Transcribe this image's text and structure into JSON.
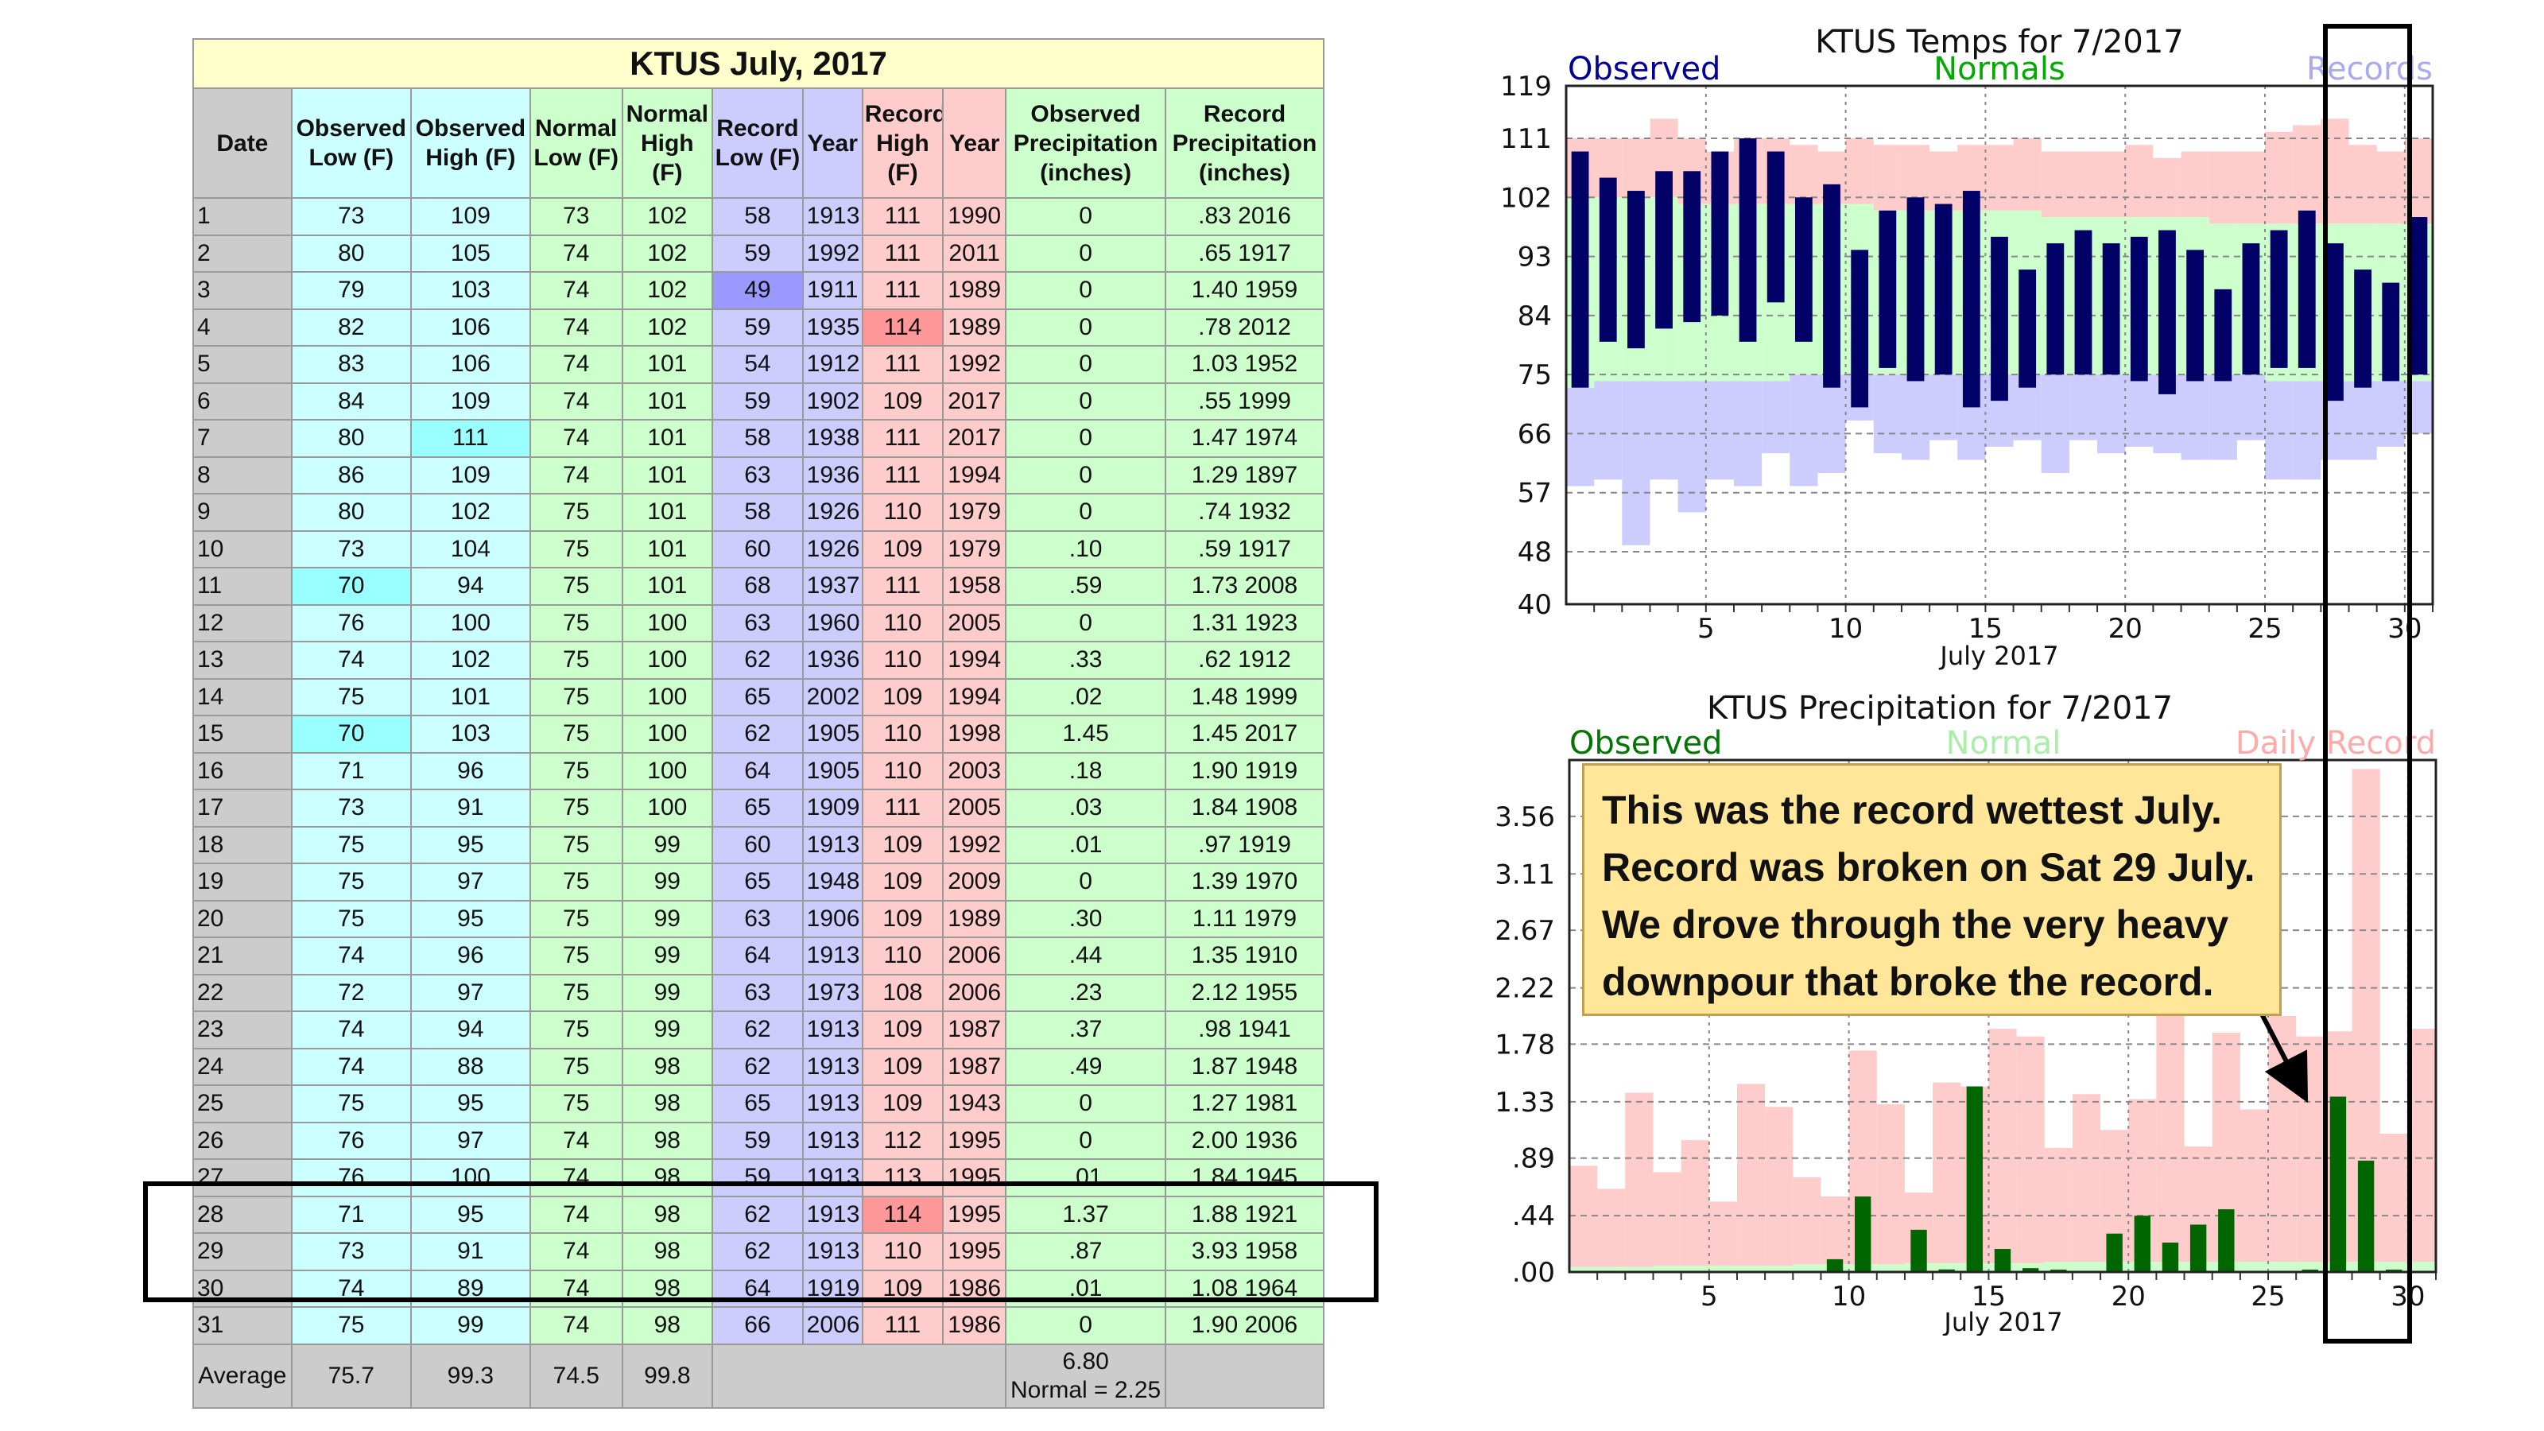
{
  "table": {
    "title": "KTUS July, 2017",
    "headers": [
      "Date",
      "Observed Low (F)",
      "Observed High (F)",
      "Normal Low (F)",
      "Normal High (F)",
      "Record Low (F)",
      "Year",
      "Record High (F)",
      "Year",
      "Observed Precipitation (inches)",
      "Record Precipitation (inches)"
    ],
    "rows": [
      [
        "1",
        "73",
        "109",
        "73",
        "102",
        "58",
        "1913",
        "111",
        "1990",
        "0",
        ".83 2016"
      ],
      [
        "2",
        "80",
        "105",
        "74",
        "102",
        "59",
        "1992",
        "111",
        "2011",
        "0",
        ".65 1917"
      ],
      [
        "3",
        "79",
        "103",
        "74",
        "102",
        "49",
        "1911",
        "111",
        "1989",
        "0",
        "1.40 1959"
      ],
      [
        "4",
        "82",
        "106",
        "74",
        "102",
        "59",
        "1935",
        "114",
        "1989",
        "0",
        ".78 2012"
      ],
      [
        "5",
        "83",
        "106",
        "74",
        "101",
        "54",
        "1912",
        "111",
        "1992",
        "0",
        "1.03 1952"
      ],
      [
        "6",
        "84",
        "109",
        "74",
        "101",
        "59",
        "1902",
        "109",
        "2017",
        "0",
        ".55 1999"
      ],
      [
        "7",
        "80",
        "111",
        "74",
        "101",
        "58",
        "1938",
        "111",
        "2017",
        "0",
        "1.47 1974"
      ],
      [
        "8",
        "86",
        "109",
        "74",
        "101",
        "63",
        "1936",
        "111",
        "1994",
        "0",
        "1.29 1897"
      ],
      [
        "9",
        "80",
        "102",
        "75",
        "101",
        "58",
        "1926",
        "110",
        "1979",
        "0",
        ".74 1932"
      ],
      [
        "10",
        "73",
        "104",
        "75",
        "101",
        "60",
        "1926",
        "109",
        "1979",
        ".10",
        ".59 1917"
      ],
      [
        "11",
        "70",
        "94",
        "75",
        "101",
        "68",
        "1937",
        "111",
        "1958",
        ".59",
        "1.73 2008"
      ],
      [
        "12",
        "76",
        "100",
        "75",
        "100",
        "63",
        "1960",
        "110",
        "2005",
        "0",
        "1.31 1923"
      ],
      [
        "13",
        "74",
        "102",
        "75",
        "100",
        "62",
        "1936",
        "110",
        "1994",
        ".33",
        ".62 1912"
      ],
      [
        "14",
        "75",
        "101",
        "75",
        "100",
        "65",
        "2002",
        "109",
        "1994",
        ".02",
        "1.48 1999"
      ],
      [
        "15",
        "70",
        "103",
        "75",
        "100",
        "62",
        "1905",
        "110",
        "1998",
        "1.45",
        "1.45 2017"
      ],
      [
        "16",
        "71",
        "96",
        "75",
        "100",
        "64",
        "1905",
        "110",
        "2003",
        ".18",
        "1.90 1919"
      ],
      [
        "17",
        "73",
        "91",
        "75",
        "100",
        "65",
        "1909",
        "111",
        "2005",
        ".03",
        "1.84 1908"
      ],
      [
        "18",
        "75",
        "95",
        "75",
        "99",
        "60",
        "1913",
        "109",
        "1992",
        ".01",
        ".97 1919"
      ],
      [
        "19",
        "75",
        "97",
        "75",
        "99",
        "65",
        "1948",
        "109",
        "2009",
        "0",
        "1.39 1970"
      ],
      [
        "20",
        "75",
        "95",
        "75",
        "99",
        "63",
        "1906",
        "109",
        "1989",
        ".30",
        "1.11 1979"
      ],
      [
        "21",
        "74",
        "96",
        "75",
        "99",
        "64",
        "1913",
        "110",
        "2006",
        ".44",
        "1.35 1910"
      ],
      [
        "22",
        "72",
        "97",
        "75",
        "99",
        "63",
        "1973",
        "108",
        "2006",
        ".23",
        "2.12 1955"
      ],
      [
        "23",
        "74",
        "94",
        "75",
        "99",
        "62",
        "1913",
        "109",
        "1987",
        ".37",
        ".98 1941"
      ],
      [
        "24",
        "74",
        "88",
        "75",
        "98",
        "62",
        "1913",
        "109",
        "1987",
        ".49",
        "1.87 1948"
      ],
      [
        "25",
        "75",
        "95",
        "75",
        "98",
        "65",
        "1913",
        "109",
        "1943",
        "0",
        "1.27 1981"
      ],
      [
        "26",
        "76",
        "97",
        "74",
        "98",
        "59",
        "1913",
        "112",
        "1995",
        "0",
        "2.00 1936"
      ],
      [
        "27",
        "76",
        "100",
        "74",
        "98",
        "59",
        "1913",
        "113",
        "1995",
        ".01",
        "1.84 1945"
      ],
      [
        "28",
        "71",
        "95",
        "74",
        "98",
        "62",
        "1913",
        "114",
        "1995",
        "1.37",
        "1.88 1921"
      ],
      [
        "29",
        "73",
        "91",
        "74",
        "98",
        "62",
        "1913",
        "110",
        "1995",
        ".87",
        "3.93 1958"
      ],
      [
        "30",
        "74",
        "89",
        "74",
        "98",
        "64",
        "1919",
        "109",
        "1986",
        ".01",
        "1.08 1964"
      ],
      [
        "31",
        "75",
        "99",
        "74",
        "98",
        "66",
        "2006",
        "111",
        "1986",
        "0",
        "1.90 2006"
      ]
    ],
    "average": {
      "label": "Average",
      "obs_low": "75.7",
      "obs_high": "99.3",
      "norm_low": "74.5",
      "norm_high": "99.8",
      "obs_precip": "6.80",
      "normal_precip": "Normal = 2.25"
    },
    "highlight_cells": [
      [
        3,
        5
      ],
      [
        4,
        7
      ],
      [
        7,
        2
      ],
      [
        11,
        1
      ],
      [
        15,
        1
      ],
      [
        28,
        7
      ]
    ]
  },
  "colors": {
    "gray": "#cccccc",
    "cyan": "#ccffff",
    "green": "#ccffcc",
    "lavender": "#ccccff",
    "pink": "#ffcccc",
    "hl_cyan": "#99ffff",
    "hl_lavender": "#9999ff",
    "hl_pink": "#ff9999",
    "observed_bar": "#000066",
    "precip_bar": "#006600",
    "observed_label": "#000099",
    "normals_label": "#00aa00",
    "records_label": "#aaaaee"
  },
  "chart_data": [
    {
      "type": "bar",
      "title": "KTUS Temps for 7/2017",
      "xlabel": "July 2017",
      "legend": [
        "Observed",
        "Normals",
        "Records"
      ],
      "xlim": [
        0,
        31
      ],
      "ylim": [
        40,
        119
      ],
      "y_ticks": [
        40,
        48,
        57,
        66,
        75,
        84,
        93,
        102,
        111,
        119
      ],
      "x_ticks": [
        5,
        10,
        15,
        20,
        25,
        30
      ],
      "days": [
        1,
        2,
        3,
        4,
        5,
        6,
        7,
        8,
        9,
        10,
        11,
        12,
        13,
        14,
        15,
        16,
        17,
        18,
        19,
        20,
        21,
        22,
        23,
        24,
        25,
        26,
        27,
        28,
        29,
        30,
        31
      ],
      "observed_low": [
        73,
        80,
        79,
        82,
        83,
        84,
        80,
        86,
        80,
        73,
        70,
        76,
        74,
        75,
        70,
        71,
        73,
        75,
        75,
        75,
        74,
        72,
        74,
        74,
        75,
        76,
        76,
        71,
        73,
        74,
        75
      ],
      "observed_high": [
        109,
        105,
        103,
        106,
        106,
        109,
        111,
        109,
        102,
        104,
        94,
        100,
        102,
        101,
        103,
        96,
        91,
        95,
        97,
        95,
        96,
        97,
        94,
        88,
        95,
        97,
        100,
        95,
        91,
        89,
        99
      ],
      "normal_low": [
        73,
        74,
        74,
        74,
        74,
        74,
        74,
        74,
        75,
        75,
        75,
        75,
        75,
        75,
        75,
        75,
        75,
        75,
        75,
        75,
        75,
        75,
        75,
        75,
        75,
        74,
        74,
        74,
        74,
        74,
        74
      ],
      "normal_high": [
        102,
        102,
        102,
        102,
        101,
        101,
        101,
        101,
        101,
        101,
        101,
        100,
        100,
        100,
        100,
        100,
        100,
        99,
        99,
        99,
        99,
        99,
        99,
        98,
        98,
        98,
        98,
        98,
        98,
        98,
        98
      ],
      "record_low": [
        58,
        59,
        49,
        59,
        54,
        59,
        58,
        63,
        58,
        60,
        68,
        63,
        62,
        65,
        62,
        64,
        65,
        60,
        65,
        63,
        64,
        63,
        62,
        62,
        65,
        59,
        59,
        62,
        62,
        64,
        66
      ],
      "record_high": [
        111,
        111,
        111,
        114,
        111,
        109,
        111,
        111,
        110,
        109,
        111,
        110,
        110,
        109,
        110,
        110,
        111,
        109,
        109,
        109,
        110,
        108,
        109,
        109,
        109,
        112,
        113,
        114,
        110,
        109,
        111
      ]
    },
    {
      "type": "bar",
      "title": "KTUS Precipitation for 7/2017",
      "xlabel": "July 2017",
      "legend": [
        "Observed",
        "Normal",
        "Daily Record"
      ],
      "xlim": [
        0,
        31
      ],
      "ylim": [
        0,
        4.0
      ],
      "y_ticks": [
        ".00",
        ".44",
        ".89",
        "1.33",
        "1.78",
        "2.22",
        "2.67",
        "3.11",
        "3.56"
      ],
      "y_tick_values": [
        0,
        0.44,
        0.89,
        1.33,
        1.78,
        2.22,
        2.67,
        3.11,
        3.56
      ],
      "x_ticks": [
        5,
        10,
        15,
        20,
        25,
        30
      ],
      "days": [
        1,
        2,
        3,
        4,
        5,
        6,
        7,
        8,
        9,
        10,
        11,
        12,
        13,
        14,
        15,
        16,
        17,
        18,
        19,
        20,
        21,
        22,
        23,
        24,
        25,
        26,
        27,
        28,
        29,
        30,
        31
      ],
      "observed_precip": [
        0,
        0,
        0,
        0,
        0,
        0,
        0,
        0,
        0,
        0.1,
        0.59,
        0,
        0.33,
        0.02,
        1.45,
        0.18,
        0.03,
        0.01,
        0,
        0.3,
        0.44,
        0.23,
        0.37,
        0.49,
        0,
        0,
        0.01,
        1.37,
        0.87,
        0.01,
        0
      ],
      "record_precip": [
        0.83,
        0.65,
        1.4,
        0.78,
        1.03,
        0.55,
        1.47,
        1.29,
        0.74,
        0.59,
        1.73,
        1.31,
        0.62,
        1.48,
        1.45,
        1.9,
        1.84,
        0.97,
        1.39,
        1.11,
        1.35,
        2.12,
        0.98,
        1.87,
        1.27,
        2.0,
        1.84,
        1.88,
        3.93,
        1.08,
        1.9
      ],
      "normal_precip": [
        0.04,
        0.04,
        0.04,
        0.05,
        0.05,
        0.05,
        0.05,
        0.05,
        0.06,
        0.06,
        0.06,
        0.06,
        0.07,
        0.07,
        0.07,
        0.07,
        0.07,
        0.08,
        0.08,
        0.08,
        0.08,
        0.08,
        0.08,
        0.08,
        0.08,
        0.08,
        0.08,
        0.08,
        0.08,
        0.08,
        0.08
      ]
    }
  ],
  "callout": {
    "lines": [
      "This was the record wettest July.",
      "Record was broken on Sat 29 July.",
      "We drove through the very heavy",
      "downpour that broke the record."
    ]
  }
}
